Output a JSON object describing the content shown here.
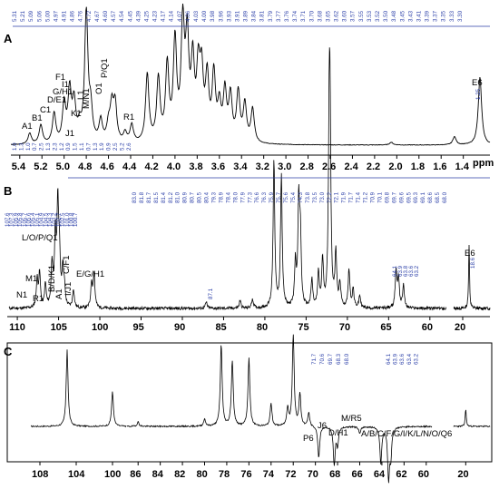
{
  "chart_data": [
    {
      "panel": "A",
      "type": "line",
      "xlabel": "ppm",
      "x_ticks": [
        5.4,
        5.2,
        5.0,
        4.8,
        4.6,
        4.4,
        4.2,
        4.0,
        3.8,
        3.6,
        3.4,
        3.2,
        3.0,
        2.8,
        2.6,
        2.4,
        2.2,
        2.0,
        1.8,
        1.6,
        1.4
      ],
      "x_tick_labels": [
        "5.4",
        "5.2",
        "5.0",
        "4.8",
        "4.6",
        "4.4",
        "4.2",
        "4.0",
        "3.8",
        "3.6",
        "3.4",
        "3.2",
        "3.0",
        "2.8",
        "2.6",
        "2.4",
        "2.2",
        "2.0",
        "1.8",
        "1.6",
        "1.4"
      ],
      "xlim": [
        5.48,
        1.16
      ],
      "top_shift_labels": [
        "5.31",
        "5.21",
        "5.09",
        "5.06",
        "5.00",
        "4.97",
        "4.91",
        "4.86",
        "4.76",
        "4.72",
        "4.67",
        "4.60",
        "4.57",
        "4.54",
        "4.45",
        "4.39",
        "4.25",
        "4.23",
        "4.17",
        "4.14",
        "4.07",
        "4.06",
        "4.03",
        "4.00",
        "3.98",
        "3.96",
        "3.93",
        "3.91",
        "3.89",
        "3.84",
        "3.81",
        "3.79",
        "3.77",
        "3.76",
        "3.74",
        "3.71",
        "3.70",
        "3.68",
        "3.65",
        "3.62",
        "3.60",
        "3.57",
        "3.55",
        "3.53",
        "3.52",
        "3.50",
        "3.48",
        "3.45",
        "3.43",
        "3.41",
        "3.39",
        "3.37",
        "3.35",
        "3.33",
        "3.30"
      ],
      "integrals": [
        "1.0",
        "1.3",
        "1.0",
        "0.7",
        "2.5",
        "1.3",
        "2.3",
        "1.2",
        "0.9",
        "1.5",
        "1.1",
        "0.7",
        "1.3",
        "1.9",
        "0.9",
        "2.5",
        "5.2",
        "2.6"
      ],
      "side_label": "1.25",
      "peak_labels": [
        "A1",
        "B1",
        "C1",
        "D/E1",
        "G/H1",
        "F1",
        "I1",
        "J1",
        "K1",
        "L1",
        "M/N1",
        "O1",
        "P/Q1",
        "R1",
        "E6"
      ],
      "peaks": [
        [
          5.31,
          0.08
        ],
        [
          5.21,
          0.14
        ],
        [
          5.09,
          0.22
        ],
        [
          5.0,
          0.28
        ],
        [
          4.95,
          0.37
        ],
        [
          4.91,
          0.28
        ],
        [
          4.86,
          0.1
        ],
        [
          4.8,
          0.95
        ],
        [
          4.76,
          0.22
        ],
        [
          4.67,
          0.16
        ],
        [
          4.6,
          0.12
        ],
        [
          4.57,
          0.25
        ],
        [
          4.54,
          0.27
        ],
        [
          4.45,
          0.07
        ],
        [
          4.39,
          0.13
        ],
        [
          4.25,
          0.5
        ],
        [
          4.15,
          0.46
        ],
        [
          4.07,
          0.55
        ],
        [
          4.0,
          0.72
        ],
        [
          3.93,
          0.82
        ],
        [
          3.89,
          0.7
        ],
        [
          3.84,
          0.55
        ],
        [
          3.79,
          0.48
        ],
        [
          3.76,
          0.46
        ],
        [
          3.71,
          0.45
        ],
        [
          3.65,
          0.48
        ],
        [
          3.6,
          0.25
        ],
        [
          3.55,
          0.36
        ],
        [
          3.5,
          0.33
        ],
        [
          3.43,
          0.36
        ],
        [
          3.37,
          0.28
        ],
        [
          3.3,
          0.25
        ],
        [
          2.05,
          0.02
        ],
        [
          1.48,
          0.06
        ],
        [
          1.25,
          0.5
        ]
      ]
    },
    {
      "panel": "B",
      "type": "line",
      "x_ticks": [
        110,
        105,
        100,
        95,
        90,
        85,
        80,
        75,
        70,
        65,
        60,
        20
      ],
      "x_tick_labels": [
        "110",
        "105",
        "100",
        "95",
        "90",
        "85",
        "80",
        "75",
        "70",
        "65",
        "60",
        "20"
      ],
      "axis_break_after": 60,
      "xlim": [
        111,
        14
      ],
      "top_shift_labels": [
        "83.0",
        "81.8",
        "81.7",
        "81.5",
        "81.4",
        "81.2",
        "81.0",
        "80.9",
        "80.7",
        "80.5",
        "80.4",
        "79.3",
        "78.9",
        "78.4",
        "78.0",
        "77.9",
        "77.3",
        "76.6",
        "76.3",
        "75.9",
        "75.7",
        "75.6",
        "75.4",
        "74.3",
        "73.8",
        "73.5",
        "73.0",
        "72.2",
        "72.1",
        "71.9",
        "71.7",
        "71.4",
        "71.2",
        "70.9",
        "70.1",
        "69.8",
        "69.7",
        "69.6",
        "69.5",
        "69.3",
        "69.1",
        "68.6",
        "68.5",
        "68.0"
      ],
      "left_shift_labels": [
        "107.6",
        "107.3",
        "105.9",
        "105.8",
        "105.7",
        "105.6",
        "105.4",
        "105.1",
        "104.9",
        "104.5",
        "104.3",
        "103.2",
        "102.7",
        "102.5",
        "101.0",
        "100.8",
        "100.7"
      ],
      "side_labels": [
        "64.1",
        "63.9",
        "63.8",
        "63.6",
        "63.2",
        "18.6",
        "87.1"
      ],
      "peak_labels": [
        "L/O/P/Q1",
        "N1",
        "M1",
        "R1",
        "B/D/K1",
        "C/F1",
        "A1",
        "I/J1",
        "E/G/H1",
        "E6"
      ],
      "peaks": [
        [
          107.6,
          0.18
        ],
        [
          107.3,
          0.22
        ],
        [
          106.6,
          0.15
        ],
        [
          105.8,
          0.28
        ],
        [
          105.4,
          0.45
        ],
        [
          105.1,
          0.62
        ],
        [
          104.9,
          0.32
        ],
        [
          104.5,
          0.22
        ],
        [
          104.3,
          0.12
        ],
        [
          103.2,
          0.12
        ],
        [
          101.0,
          0.16
        ],
        [
          100.7,
          0.22
        ],
        [
          87.1,
          0.04
        ],
        [
          83.0,
          0.05
        ],
        [
          81.5,
          0.06
        ],
        [
          78.9,
          0.95
        ],
        [
          78.0,
          0.85
        ],
        [
          76.3,
          0.28
        ],
        [
          75.9,
          0.65
        ],
        [
          75.7,
          0.45
        ],
        [
          74.3,
          0.18
        ],
        [
          73.5,
          0.22
        ],
        [
          73.0,
          0.3
        ],
        [
          72.2,
          1.0
        ],
        [
          72.1,
          0.98
        ],
        [
          71.4,
          0.35
        ],
        [
          70.9,
          0.15
        ],
        [
          69.8,
          0.25
        ],
        [
          69.3,
          0.12
        ],
        [
          68.5,
          0.08
        ],
        [
          64.1,
          0.24
        ],
        [
          63.8,
          0.19
        ],
        [
          63.2,
          0.15
        ],
        [
          18.6,
          0.42
        ]
      ]
    },
    {
      "panel": "C",
      "type": "line",
      "x_ticks": [
        108,
        104,
        100,
        86,
        84,
        82,
        80,
        78,
        76,
        74,
        72,
        70,
        68,
        66,
        64,
        62,
        60,
        20
      ],
      "x_tick_labels": [
        "108",
        "104",
        "100",
        "86",
        "84",
        "82",
        "80",
        "78",
        "76",
        "74",
        "72",
        "70",
        "68",
        "66",
        "64",
        "62",
        "60",
        "20"
      ],
      "axis_breaks": [
        98,
        60
      ],
      "top_shift_labels": [
        "71.7",
        "70.6",
        "69.7",
        "68.3",
        "68.0",
        "64.1",
        "63.9",
        "63.6",
        "63.4",
        "63.2"
      ],
      "peak_labels": [
        "P6",
        "J6",
        "D/H1",
        "M/R5",
        "A/B/C/F/G/I/K/L/N/O/Q6"
      ],
      "peaks": [
        [
          105.0,
          0.85
        ],
        [
          100.0,
          0.38
        ],
        [
          86.0,
          0.05
        ],
        [
          80.0,
          0.08
        ],
        [
          78.5,
          0.9
        ],
        [
          77.5,
          0.72
        ],
        [
          76.0,
          0.75
        ],
        [
          74.0,
          0.25
        ],
        [
          72.5,
          0.2
        ],
        [
          72.0,
          1.0
        ],
        [
          71.4,
          0.35
        ],
        [
          70.6,
          0.15
        ],
        [
          69.7,
          -0.35
        ],
        [
          68.3,
          -0.42
        ],
        [
          68.0,
          -0.2
        ],
        [
          66.0,
          -0.08
        ],
        [
          64.1,
          -0.4
        ],
        [
          63.4,
          -0.55
        ],
        [
          63.2,
          -0.3
        ],
        [
          20.0,
          0.2
        ]
      ]
    }
  ],
  "texts": {
    "panel_a": "A",
    "panel_b": "B",
    "panel_c": "C",
    "ppm": "ppm"
  }
}
